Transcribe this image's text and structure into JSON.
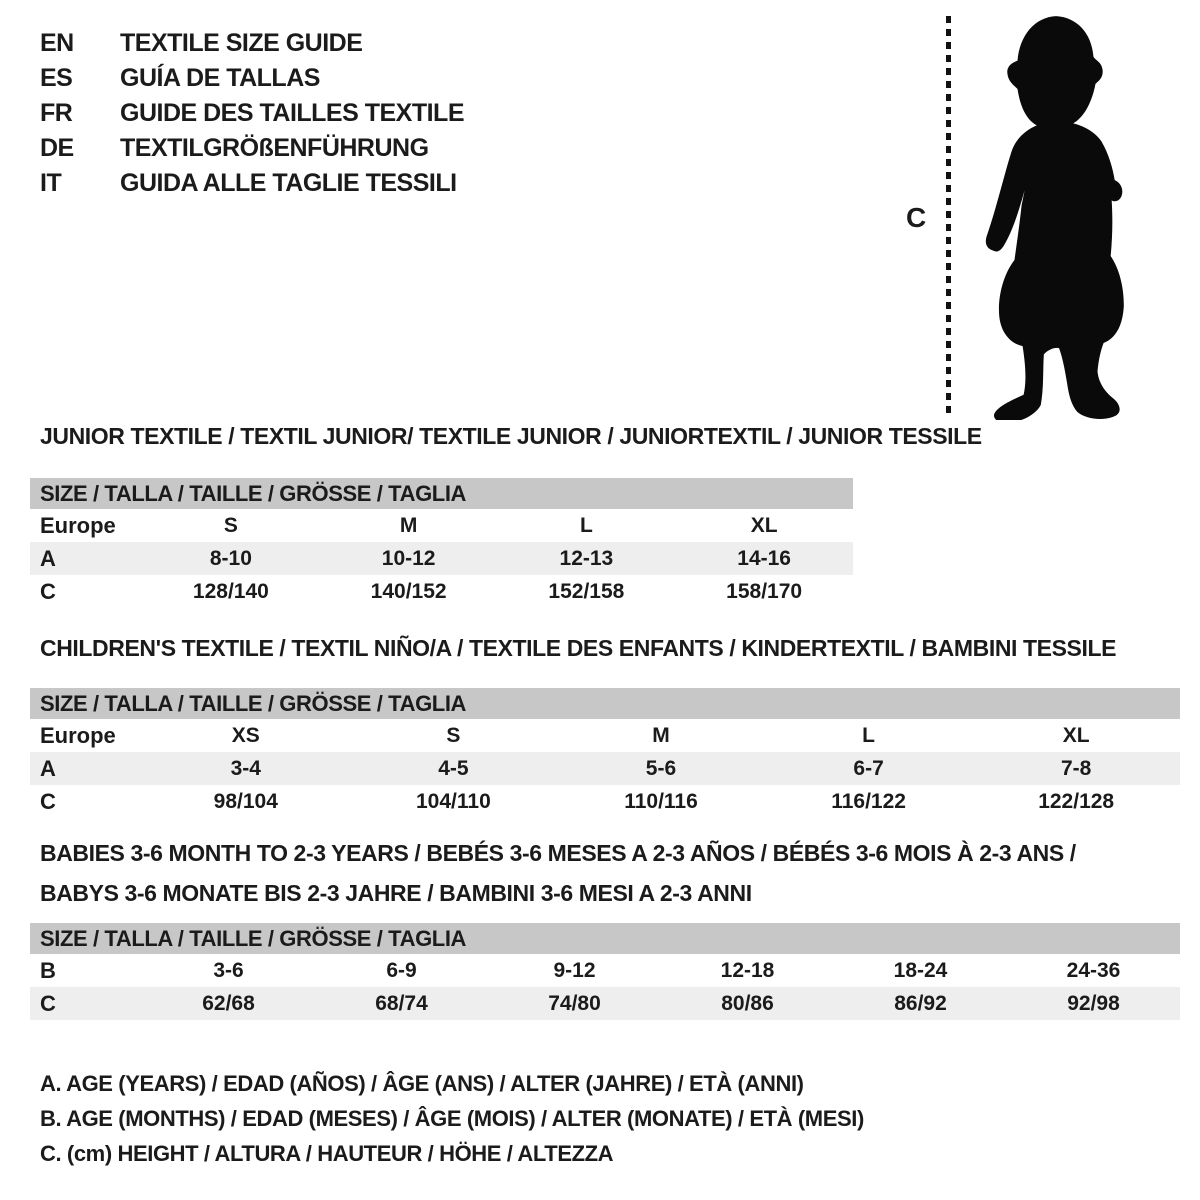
{
  "colors": {
    "background": "#ffffff",
    "text": "#1b1b1b",
    "table_header_bg": "#c7c7c7",
    "row_shaded_bg": "#eeeeee",
    "silhouette": "#0a0a0a"
  },
  "languages": [
    {
      "code": "EN",
      "title": "TEXTILE SIZE GUIDE"
    },
    {
      "code": "ES",
      "title": "GUÍA DE TALLAS"
    },
    {
      "code": "FR",
      "title": "GUIDE DES TAILLES TEXTILE"
    },
    {
      "code": "DE",
      "title": "TEXTILGRÖßENFÜHRUNG"
    },
    {
      "code": "IT",
      "title": "GUIDA ALLE TAGLIE TESSILI"
    }
  ],
  "figure": {
    "measure_label": "C"
  },
  "sections": [
    {
      "title_lines": [
        "JUNIOR TEXTILE / TEXTIL JUNIOR/ TEXTILE JUNIOR / JUNIORTEXTIL / JUNIOR TESSILE"
      ],
      "table_header": "SIZE / TALLA / TAILLE / GRÖSSE / TAGLIA",
      "rows": [
        {
          "label": "Europe",
          "values": [
            "S",
            "M",
            "L",
            "XL"
          ],
          "shaded": false
        },
        {
          "label": "A",
          "values": [
            "8-10",
            "10-12",
            "12-13",
            "14-16"
          ],
          "shaded": true
        },
        {
          "label": "C",
          "values": [
            "128/140",
            "140/152",
            "152/158",
            "158/170"
          ],
          "shaded": false
        }
      ]
    },
    {
      "title_lines": [
        "CHILDREN'S TEXTILE / TEXTIL NIÑO/A / TEXTILE DES ENFANTS / KINDERTEXTIL / BAMBINI TESSILE"
      ],
      "table_header": "SIZE / TALLA / TAILLE / GRÖSSE / TAGLIA",
      "rows": [
        {
          "label": "Europe",
          "values": [
            "XS",
            "S",
            "M",
            "L",
            "XL"
          ],
          "shaded": false
        },
        {
          "label": "A",
          "values": [
            "3-4",
            "4-5",
            "5-6",
            "6-7",
            "7-8"
          ],
          "shaded": true
        },
        {
          "label": "C",
          "values": [
            "98/104",
            "104/110",
            "110/116",
            "116/122",
            "122/128"
          ],
          "shaded": false
        }
      ]
    },
    {
      "title_lines": [
        "BABIES 3-6 MONTH TO 2-3 YEARS / BEBÉS 3-6 MESES A 2-3 AÑOS / BÉBÉS 3-6 MOIS À 2-3 ANS /",
        "BABYS 3-6 MONATE BIS 2-3 JAHRE / BAMBINI 3-6 MESI A 2-3 ANNI"
      ],
      "table_header": "SIZE / TALLA / TAILLE / GRÖSSE / TAGLIA",
      "rows": [
        {
          "label": "B",
          "values": [
            "3-6",
            "6-9",
            "9-12",
            "12-18",
            "18-24",
            "24-36"
          ],
          "shaded": false
        },
        {
          "label": "C",
          "values": [
            "62/68",
            "68/74",
            "74/80",
            "80/86",
            "86/92",
            "92/98"
          ],
          "shaded": true
        }
      ]
    }
  ],
  "legend": [
    "A. AGE (YEARS) / EDAD (AÑOS) / ÂGE (ANS) / ALTER (JAHRE) / ETÀ (ANNI)",
    "B. AGE (MONTHS) / EDAD (MESES) / ÂGE (MOIS) / ALTER (MONATE) / ETÀ (MESI)",
    "C. (cm) HEIGHT / ALTURA / HAUTEUR / HÖHE / ALTEZZA"
  ]
}
